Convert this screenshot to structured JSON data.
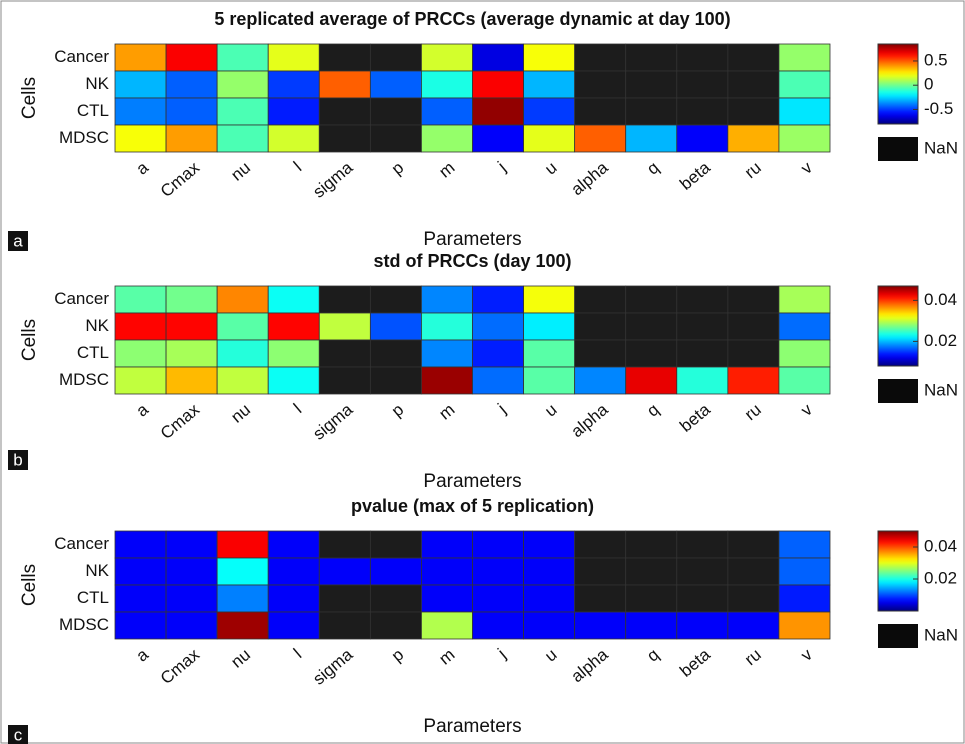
{
  "chart_data": [
    {
      "type": "heatmap",
      "panel": "a",
      "title": "5 replicated average of PRCCs (average dynamic at day 100)",
      "xlabel": "Parameters",
      "ylabel": "Cells",
      "categories": [
        "a",
        "Cmax",
        "nu",
        "l",
        "sigma",
        "p",
        "m",
        "j",
        "u",
        "alpha",
        "q",
        "beta",
        "ru",
        "v"
      ],
      "rows": [
        "Cancer",
        "NK",
        "CTL",
        "MDSC"
      ],
      "values": [
        [
          0.39,
          0.65,
          -0.06,
          0.19,
          null,
          null,
          0.16,
          -0.64,
          0.22,
          null,
          null,
          null,
          null,
          0.06
        ],
        [
          -0.3,
          -0.44,
          0.06,
          -0.5,
          0.49,
          -0.44,
          -0.14,
          0.65,
          -0.3,
          null,
          null,
          null,
          null,
          -0.06
        ],
        [
          -0.39,
          -0.44,
          -0.06,
          -0.55,
          null,
          null,
          -0.44,
          0.82,
          -0.5,
          null,
          null,
          null,
          null,
          -0.22
        ],
        [
          0.22,
          0.39,
          -0.06,
          0.16,
          null,
          null,
          0.06,
          -0.6,
          0.19,
          0.49,
          -0.3,
          -0.6,
          0.36,
          0.07
        ]
      ],
      "zlim": [
        -0.8,
        0.85
      ],
      "zticks": [
        0.5,
        0,
        -0.5
      ],
      "colormap": "jet",
      "nan_color": "#1c1c1c",
      "nan_label": "NaN"
    },
    {
      "type": "heatmap",
      "panel": "b",
      "title": "std of PRCCs (day 100)",
      "xlabel": "Parameters",
      "ylabel": "Cells",
      "categories": [
        "a",
        "Cmax",
        "nu",
        "l",
        "sigma",
        "p",
        "m",
        "j",
        "u",
        "alpha",
        "q",
        "beta",
        "ru",
        "v"
      ],
      "rows": [
        "Cancer",
        "NK",
        "CTL",
        "MDSC"
      ],
      "values": [
        [
          0.026,
          0.027,
          0.037,
          0.023,
          null,
          null,
          0.018,
          0.014,
          0.032,
          null,
          null,
          null,
          null,
          0.029
        ],
        [
          0.042,
          0.042,
          0.026,
          0.042,
          0.03,
          0.016,
          0.024,
          0.017,
          0.022,
          null,
          null,
          null,
          null,
          0.017
        ],
        [
          0.028,
          0.029,
          0.024,
          0.028,
          null,
          null,
          0.018,
          0.014,
          0.026,
          null,
          null,
          null,
          null,
          0.028
        ],
        [
          0.03,
          0.035,
          0.03,
          0.023,
          null,
          null,
          0.046,
          0.017,
          0.026,
          0.018,
          0.043,
          0.024,
          0.041,
          0.026
        ]
      ],
      "zlim": [
        0.008,
        0.047
      ],
      "zticks": [
        0.04,
        0.02
      ],
      "colormap": "jet",
      "nan_color": "#1c1c1c",
      "nan_label": "NaN"
    },
    {
      "type": "heatmap",
      "panel": "c",
      "title": "pvalue (max of 5 replication)",
      "xlabel": "Parameters",
      "ylabel": "Cells",
      "categories": [
        "a",
        "Cmax",
        "nu",
        "l",
        "sigma",
        "p",
        "m",
        "j",
        "u",
        "alpha",
        "q",
        "beta",
        "ru",
        "v"
      ],
      "rows": [
        "Cancer",
        "NK",
        "CTL",
        "MDSC"
      ],
      "values": [
        [
          0.006,
          0.006,
          0.044,
          0.006,
          null,
          null,
          0.006,
          0.006,
          0.006,
          null,
          null,
          null,
          null,
          0.011
        ],
        [
          0.006,
          0.006,
          0.019,
          0.006,
          0.006,
          0.006,
          0.006,
          0.006,
          0.006,
          null,
          null,
          null,
          null,
          0.011
        ],
        [
          0.006,
          0.006,
          0.0125,
          0.006,
          null,
          null,
          0.006,
          0.006,
          0.006,
          null,
          null,
          null,
          null,
          0.0075
        ],
        [
          0.006,
          0.006,
          0.0485,
          0.006,
          null,
          null,
          0.0275,
          0.006,
          0.006,
          0.006,
          0.006,
          0.006,
          0.006,
          0.0365
        ]
      ],
      "zlim": [
        0,
        0.05
      ],
      "zticks": [
        0.04,
        0.02
      ],
      "colormap": "jet",
      "nan_color": "#1c1c1c",
      "nan_label": "NaN"
    }
  ]
}
